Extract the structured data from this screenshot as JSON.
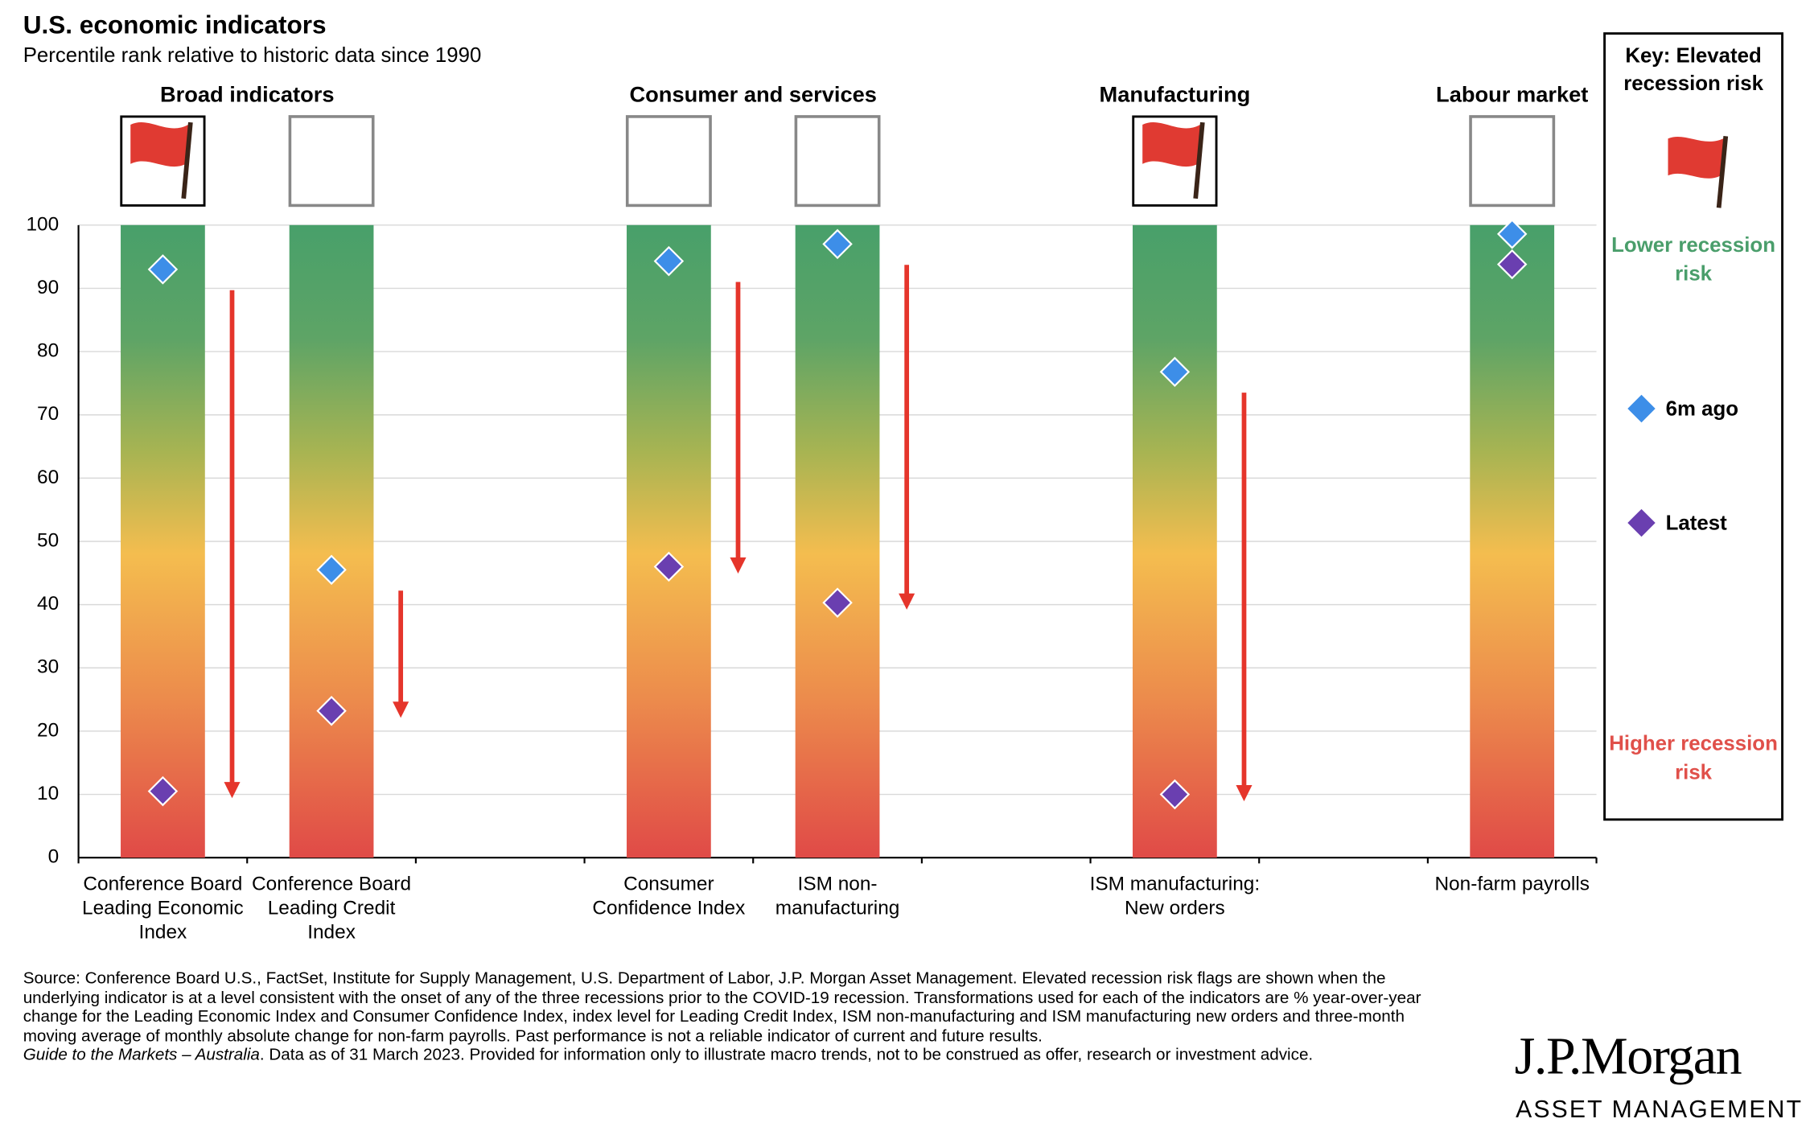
{
  "chart_data": {
    "type": "range-dot",
    "title": "U.S. economic indicators",
    "subtitle": "Percentile rank relative to historic data since 1990",
    "categories": [
      "Conference Board Leading Economic Index",
      "Conference Board Leading Credit Index",
      null,
      "Consumer Confidence Index",
      "ISM non-manufacturing",
      null,
      "ISM manufacturing: New orders",
      null,
      "Non-farm payrolls"
    ],
    "groups": [
      "Broad indicators",
      null,
      null,
      "Consumer and services",
      null,
      null,
      "Manufacturing",
      null,
      "Labour market"
    ],
    "elevated_risk": [
      true,
      false,
      null,
      false,
      false,
      null,
      true,
      null,
      false
    ],
    "series": [
      {
        "name": "6m ago",
        "color": "#3d8ee8",
        "values": [
          93,
          45.5,
          null,
          94.3,
          97,
          null,
          76.8,
          null,
          98.6
        ]
      },
      {
        "name": "Latest",
        "color": "#6a3fb0",
        "values": [
          10.5,
          23.2,
          null,
          46,
          40.3,
          null,
          10,
          null,
          93.8
        ]
      }
    ],
    "ylim": [
      0,
      100
    ],
    "yticks": [
      0,
      10,
      20,
      30,
      40,
      50,
      60,
      70,
      80,
      90,
      100
    ],
    "key": {
      "title": "Key: Elevated recession risk",
      "lower": "Lower recession risk",
      "higher": "Higher recession risk"
    },
    "source": "Source: Conference Board U.S., FactSet, Institute for Supply Management, U.S. Department of Labor, J.P. Morgan Asset Management. Elevated recession risk flags are shown when the underlying indicator is at a level consistent with the onset of any of the three recessions prior to the COVID-19 recession. Transformations used for each of the indicators are % year-over-year change for the Leading Economic Index and Consumer Confidence Index, index level for Leading Credit Index, ISM non-manufacturing and ISM manufacturing new orders and three-month moving average of monthly absolute change for non-farm payrolls. Past performance is not a reliable indicator of current and future results.",
    "guide": "Guide to the Markets – Australia",
    "disclaimer": ". Data as of 31 March 2023. Provided for information only to illustrate macro trends, not to be construed as offer, research or investment advice.",
    "logo": "J.P.Morgan",
    "logo_sub": "ASSET MANAGEMENT"
  }
}
